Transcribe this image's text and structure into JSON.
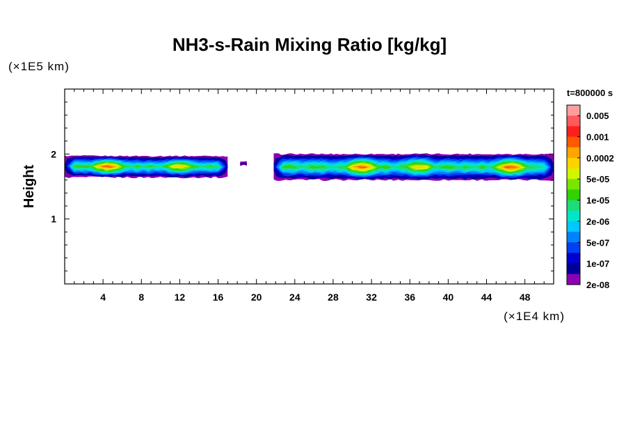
{
  "chart_data": {
    "type": "heatmap",
    "title": "NH3-s-Rain Mixing Ratio [kg/kg]",
    "ylabel": "Height",
    "y_scale_label": "(×1E5 km)",
    "x_scale_label": "(×1E4 km)",
    "time_label": "t=800000 s",
    "xlim": [
      0,
      51
    ],
    "ylim": [
      0,
      3
    ],
    "x_ticks": [
      4,
      8,
      12,
      16,
      20,
      24,
      28,
      32,
      36,
      40,
      44,
      48
    ],
    "y_ticks": [
      1,
      2
    ],
    "colorbar": {
      "labels": [
        "0.005",
        "0.001",
        "0.0002",
        "5e-05",
        "1e-05",
        "2e-06",
        "5e-07",
        "1e-07",
        "2e-08"
      ],
      "colors_top_to_bottom": [
        "#ff9e9e",
        "#ff5a5a",
        "#ff1e1e",
        "#ff5a00",
        "#ffa500",
        "#ffd200",
        "#d2f500",
        "#78e600",
        "#32d200",
        "#1edc78",
        "#00e6c8",
        "#00c8ff",
        "#0082ff",
        "#0040f0",
        "#0000d2",
        "#000096",
        "#8c00b4"
      ]
    },
    "cloud_segments": [
      {
        "x_start": 0.0,
        "x_end": 17.0,
        "y_bottom": 1.64,
        "y_top": 1.97,
        "core_height": 1.81
      },
      {
        "x_start": 18.3,
        "x_end": 19.0,
        "y_bottom": 1.82,
        "y_top": 1.88,
        "core_height": 1.85
      },
      {
        "x_start": 21.8,
        "x_end": 51.0,
        "y_bottom": 1.6,
        "y_top": 2.0,
        "core_height": 1.8
      }
    ],
    "peak_regions": [
      {
        "x_center": 4.5,
        "y_center": 1.81,
        "level": 0.001
      },
      {
        "x_center": 12.0,
        "y_center": 1.79,
        "level": 0.0002
      },
      {
        "x_center": 31.0,
        "y_center": 1.82,
        "level": 0.001
      },
      {
        "x_center": 37.0,
        "y_center": 1.83,
        "level": 0.0002
      },
      {
        "x_center": 46.5,
        "y_center": 1.76,
        "level": 0.001
      }
    ]
  }
}
